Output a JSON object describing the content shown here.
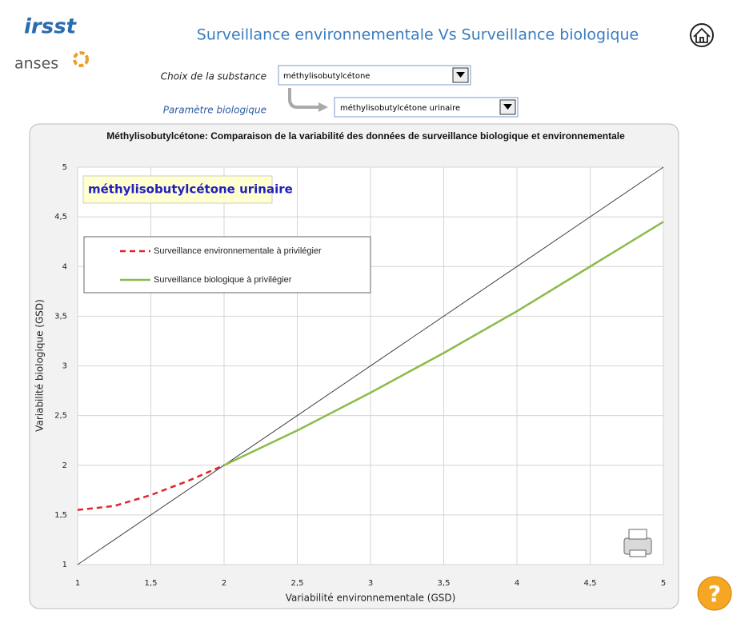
{
  "header": {
    "title": "Surveillance environnementale  Vs Surveillance biologique",
    "logo_top": "irsst",
    "logo_bottom": "anses"
  },
  "form": {
    "substance_label": "Choix de la substance",
    "substance_value": "méthylisobutylcétone",
    "parameter_label": "Paramètre biologique",
    "parameter_value": "méthylisobutylcétone urinaire"
  },
  "help": "?",
  "chart_data": {
    "type": "line",
    "title": "Méthylisobutylcétone: Comparaison de la variabilité des données de surveillance biologique et environnementale",
    "annotation": "méthylisobutylcétone urinaire",
    "x_label": "Variabilité environnementale (GSD)",
    "y_label": "Variabilité biologique (GSD)",
    "xlim": [
      1,
      5
    ],
    "ylim": [
      1,
      5
    ],
    "xticks": [
      1,
      {
        "value": 1.5,
        "label": "1,5"
      },
      2,
      {
        "value": 2.5,
        "label": "2,5"
      },
      3,
      {
        "value": 3.5,
        "label": "3,5"
      },
      4,
      {
        "value": 4.5,
        "label": "4,5"
      },
      5
    ],
    "yticks": [
      1,
      {
        "value": 1.5,
        "label": "1,5"
      },
      2,
      {
        "value": 2.5,
        "label": "2,5"
      },
      3,
      {
        "value": 3.5,
        "label": "3,5"
      },
      4,
      {
        "value": 4.5,
        "label": "4,5"
      },
      5
    ],
    "grid": true,
    "legend": "upper left",
    "series": [
      {
        "color": "#404040",
        "x": [
          1,
          5
        ],
        "values": [
          1,
          5
        ]
      },
      {
        "name": "Surveillance environnementale à privilégier",
        "color": "#e0262b",
        "dashed": true,
        "x": [
          1,
          1.25,
          1.5,
          1.75,
          2
        ],
        "values": [
          1.55,
          1.59,
          1.7,
          1.84,
          2
        ]
      },
      {
        "name": "Surveillance biologique à privilégier",
        "color": "#8cbb4a",
        "x": [
          2,
          2.5,
          3,
          3.5,
          4,
          4.5,
          5
        ],
        "values": [
          2,
          2.35,
          2.73,
          3.13,
          3.55,
          4,
          4.45
        ]
      }
    ]
  }
}
